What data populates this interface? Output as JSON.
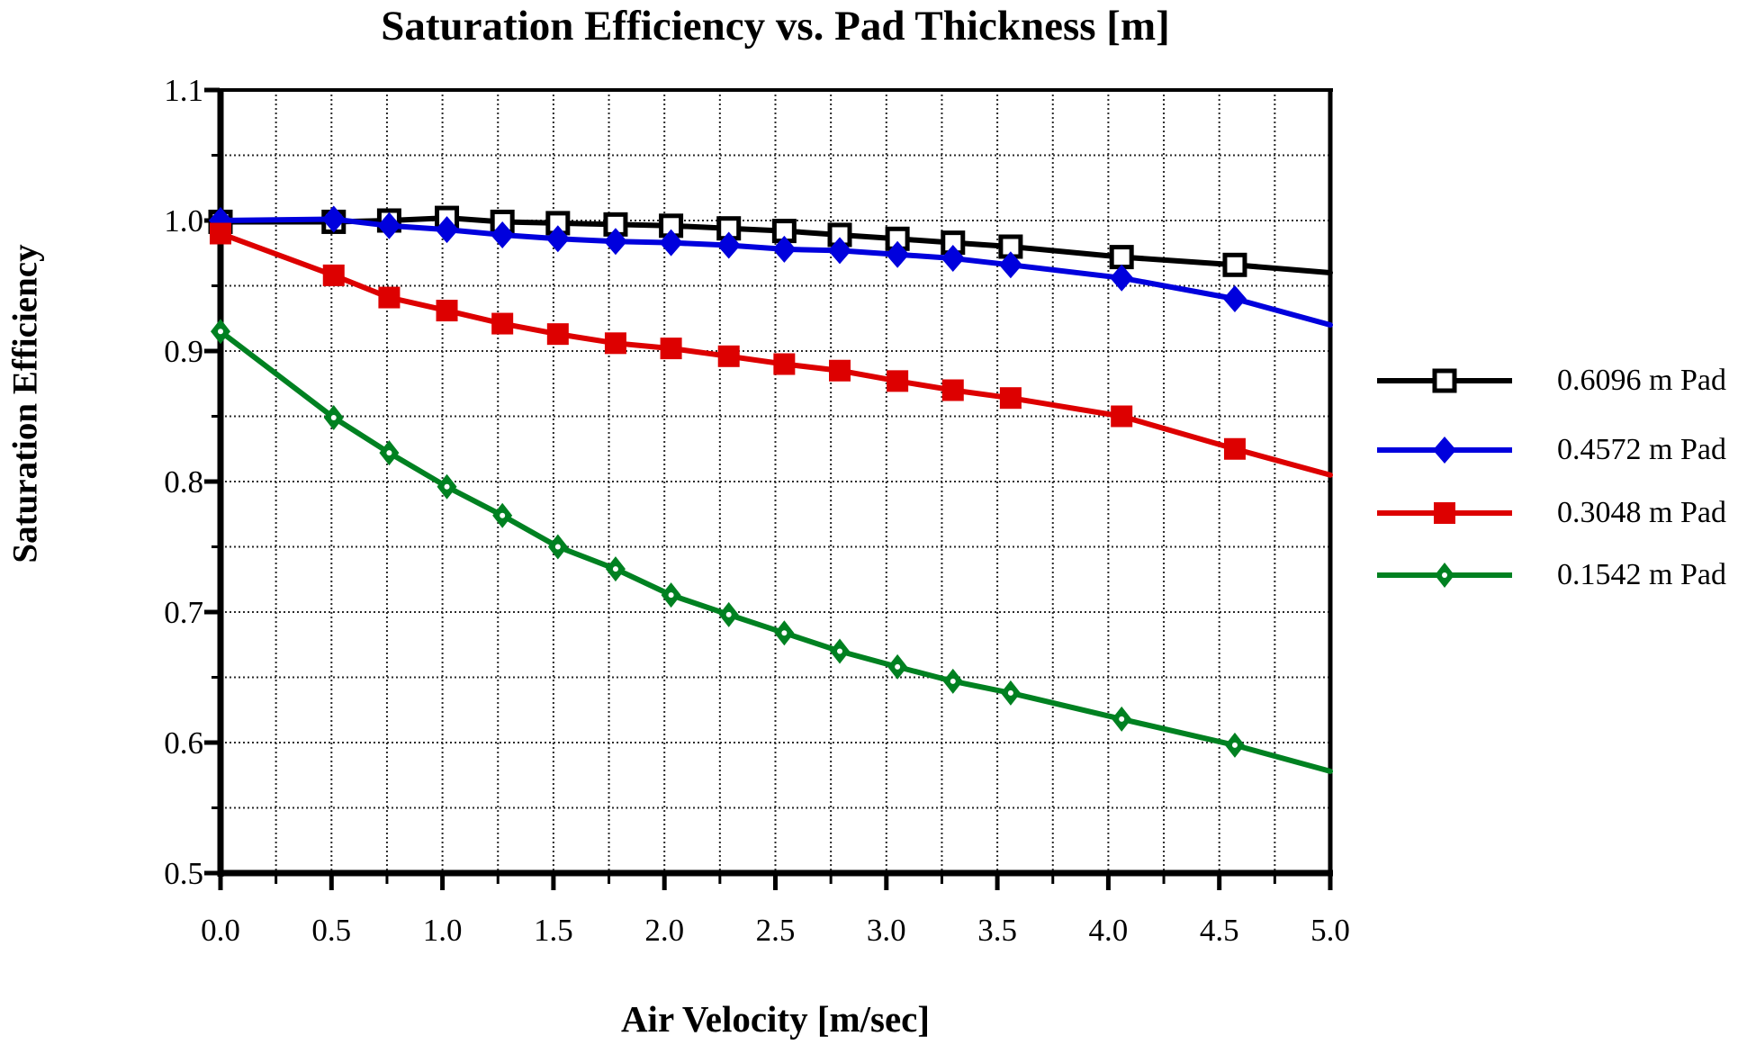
{
  "chart_data": {
    "type": "line",
    "title": "Saturation Efficiency vs. Pad Thickness [m]",
    "xlabel": "Air Velocity [m/sec]",
    "ylabel": "Saturation Efficiency",
    "xlim": [
      0.0,
      5.0
    ],
    "ylim": [
      0.5,
      1.1
    ],
    "x_major_ticks": [
      "0.0",
      "0.5",
      "1.0",
      "1.5",
      "2.0",
      "2.5",
      "3.0",
      "3.5",
      "4.0",
      "4.5",
      "5.0"
    ],
    "y_major_ticks": [
      "1.1",
      "1.0",
      "0.9",
      "0.8",
      "0.7",
      "0.6",
      "0.5"
    ],
    "x_minor_step": 0.25,
    "y_minor_step": 0.05,
    "grid": {
      "x_step": 0.25,
      "y_step": 0.05,
      "style": "dotted"
    },
    "legend_position": "right",
    "x": [
      0.0,
      0.51,
      0.76,
      1.02,
      1.27,
      1.52,
      1.78,
      2.03,
      2.29,
      2.54,
      2.79,
      3.05,
      3.3,
      3.56,
      4.06,
      4.57,
      5.0
    ],
    "series": [
      {
        "name": "0.6096 m Pad",
        "color": "#000000",
        "marker": "open-square",
        "values": [
          0.999,
          0.999,
          1.0,
          1.002,
          0.999,
          0.998,
          0.997,
          0.996,
          0.994,
          0.992,
          0.989,
          0.986,
          0.983,
          0.98,
          0.972,
          0.966,
          0.96
        ]
      },
      {
        "name": "0.4572 m Pad",
        "color": "#0000DD",
        "marker": "filled-diamond",
        "values": [
          1.0,
          1.001,
          0.996,
          0.993,
          0.989,
          0.986,
          0.984,
          0.983,
          0.981,
          0.978,
          0.977,
          0.974,
          0.971,
          0.966,
          0.956,
          0.94,
          0.92
        ]
      },
      {
        "name": "0.3048 m Pad",
        "color": "#DD0000",
        "marker": "filled-square",
        "values": [
          0.99,
          0.958,
          0.941,
          0.931,
          0.921,
          0.913,
          0.906,
          0.902,
          0.896,
          0.89,
          0.885,
          0.877,
          0.87,
          0.864,
          0.85,
          0.825,
          0.805
        ]
      },
      {
        "name": "0.1542 m Pad",
        "color": "#008121",
        "marker": "open-diamond",
        "values": [
          0.915,
          0.849,
          0.822,
          0.796,
          0.774,
          0.75,
          0.733,
          0.713,
          0.698,
          0.684,
          0.67,
          0.658,
          0.647,
          0.638,
          0.618,
          0.598,
          0.578
        ]
      }
    ]
  }
}
